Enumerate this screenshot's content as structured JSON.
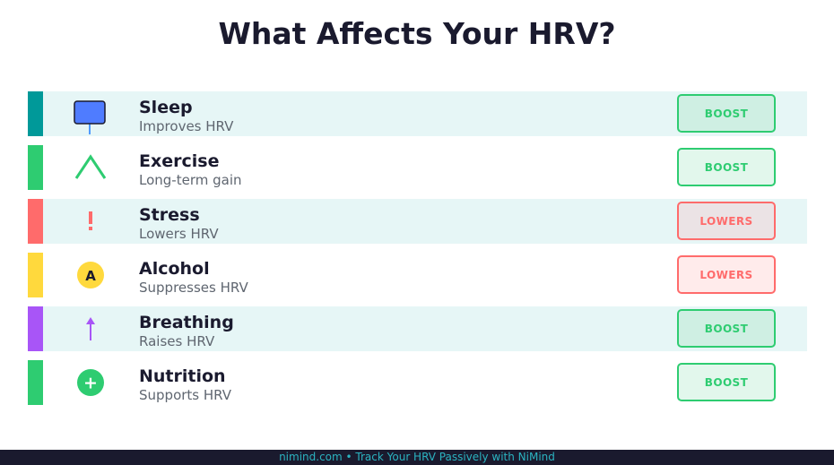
{
  "title": "What Affects Your HRV?",
  "colors": {
    "teal": "#009999",
    "green": "#2ecc71",
    "red": "#ff6b6b",
    "yellow": "#ffd93d",
    "purple": "#a855f7",
    "blue": "#4f7cff",
    "row_shade": "#e6f6f6",
    "dark": "#1a1a2e"
  },
  "factors": [
    {
      "name": "Sleep",
      "desc": "Improves HRV",
      "badge": "BOOST",
      "icon": "moon-pin-icon"
    },
    {
      "name": "Exercise",
      "desc": "Long-term gain",
      "badge": "BOOST",
      "icon": "caret-up-icon"
    },
    {
      "name": "Stress",
      "desc": "Lowers HRV",
      "badge": "LOWERS",
      "icon": "exclamation-icon"
    },
    {
      "name": "Alcohol",
      "desc": "Suppresses HRV",
      "badge": "LOWERS",
      "icon": "alcohol-a-icon",
      "icon_letter": "A"
    },
    {
      "name": "Breathing",
      "desc": "Raises HRV",
      "badge": "BOOST",
      "icon": "up-arrow-icon"
    },
    {
      "name": "Nutrition",
      "desc": "Supports HRV",
      "badge": "BOOST",
      "icon": "plus-circle-icon",
      "icon_symbol": "+"
    }
  ],
  "footer": "nimind.com  •  Track Your HRV Passively with NiMind"
}
